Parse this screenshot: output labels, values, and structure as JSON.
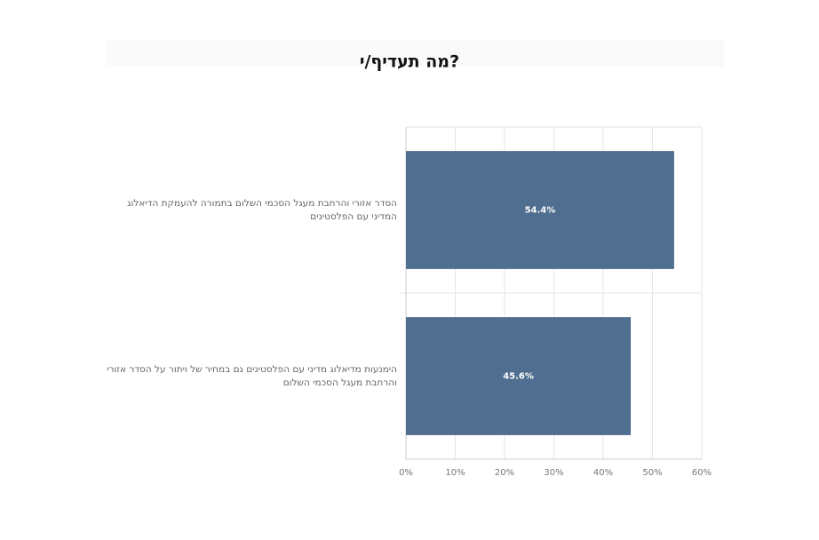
{
  "chart_data": {
    "type": "bar",
    "orientation": "horizontal",
    "title": "מה תעדיף/י?",
    "categories": [
      "הסדר אזורי והרחבת מעגל הסכמי השלום בתמורה להעמקת הדיאלוג המדיני עם הפלסטינים",
      "הימנעות מדיאלוג מדיני עם הפלסטינים גם במחיר של ויתור על הסדר אזורי והרחבת מעגל הסכמי השלום"
    ],
    "values": [
      54.4,
      45.6
    ],
    "value_labels": [
      "54.4%",
      "45.6%"
    ],
    "color": "#506e90",
    "xlim": [
      0,
      60
    ],
    "xticks": [
      {
        "value": 0,
        "label": "0%"
      },
      {
        "value": 10,
        "label": "10%"
      },
      {
        "value": 20,
        "label": "20%"
      },
      {
        "value": 30,
        "label": "30%"
      },
      {
        "value": 40,
        "label": "40%"
      },
      {
        "value": 50,
        "label": "50%"
      },
      {
        "value": 60,
        "label": "60%"
      }
    ],
    "grid": true
  }
}
